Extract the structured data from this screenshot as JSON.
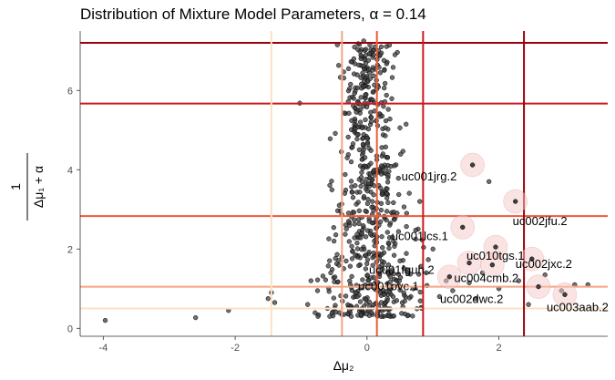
{
  "chart_data": {
    "type": "scatter",
    "title": "Distribution of Mixture Model Parameters, α = 0.14",
    "xlabel": "Δμ₂",
    "ylabel_numerator": "1",
    "ylabel_denominator": "Δμ₁ + α",
    "xlim": [
      -4.35,
      3.65
    ],
    "ylim": [
      -0.2,
      7.5
    ],
    "x_ticks": [
      -4,
      -2,
      0,
      2
    ],
    "y_ticks": [
      0,
      2,
      4,
      6
    ],
    "x_tick_labels": [
      "-4",
      "-2",
      "0",
      "2"
    ],
    "y_tick_labels": [
      "0",
      "2",
      "4",
      "6"
    ],
    "grid": false,
    "point_color": "#404040",
    "vlines": [
      {
        "x": -1.45,
        "color": "#fde0c5"
      },
      {
        "x": -0.38,
        "color": "#f4a582"
      },
      {
        "x": 0.15,
        "color": "#ef5a3c"
      },
      {
        "x": 0.85,
        "color": "#cb181d"
      },
      {
        "x": 2.38,
        "color": "#99000d"
      }
    ],
    "hlines": [
      {
        "y": 0.5,
        "color": "#fde0c5"
      },
      {
        "y": 1.05,
        "color": "#f4a582"
      },
      {
        "y": 2.83,
        "color": "#ef5a3c"
      },
      {
        "y": 5.67,
        "color": "#cb181d"
      },
      {
        "y": 7.2,
        "color": "#99000d"
      }
    ],
    "labeled_points": [
      {
        "label": "uc001jrg.2",
        "x": 1.6,
        "y": 4.12
      },
      {
        "label": "uc002jfu.2",
        "x": 2.25,
        "y": 3.2
      },
      {
        "label": "uc001lcs.1",
        "x": 1.45,
        "y": 2.55
      },
      {
        "label": "uc010tgs.1",
        "x": 1.95,
        "y": 2.05
      },
      {
        "label": "uc002jxc.2",
        "x": 2.5,
        "y": 1.75
      },
      {
        "label": "uc001fguh.2",
        "x": 1.55,
        "y": 1.65
      },
      {
        "label": "uc004cmb.2",
        "x": 1.9,
        "y": 1.6
      },
      {
        "label": "uc001ovc.1",
        "x": 1.25,
        "y": 1.3
      },
      {
        "label": "uc002dwc.2",
        "x": 2.6,
        "y": 1.05
      },
      {
        "label": "uc003aab.2",
        "x": 3.0,
        "y": 0.85
      }
    ],
    "points": [
      {
        "x": -3.97,
        "y": 0.2
      },
      {
        "x": -2.6,
        "y": 0.27
      },
      {
        "x": -2.1,
        "y": 0.45
      },
      {
        "x": -1.5,
        "y": 0.75
      },
      {
        "x": -1.45,
        "y": 0.9
      },
      {
        "x": -1.4,
        "y": 0.65
      },
      {
        "x": -1.02,
        "y": 5.68
      },
      {
        "x": -0.9,
        "y": 0.6
      },
      {
        "x": -0.85,
        "y": 1.2
      },
      {
        "x": -0.75,
        "y": 0.95
      },
      {
        "x": -0.6,
        "y": 0.5
      },
      {
        "x": -0.55,
        "y": 1.4
      },
      {
        "x": -0.5,
        "y": 2.2
      },
      {
        "x": -0.45,
        "y": 7.15
      },
      {
        "x": -0.42,
        "y": 3.1
      },
      {
        "x": -0.38,
        "y": 1.8
      },
      {
        "x": -0.35,
        "y": 0.35
      },
      {
        "x": -0.3,
        "y": 4.3
      },
      {
        "x": -0.28,
        "y": 2.7
      },
      {
        "x": -0.25,
        "y": 1.1
      },
      {
        "x": -0.2,
        "y": 6.8
      },
      {
        "x": -0.18,
        "y": 3.6
      },
      {
        "x": -0.15,
        "y": 0.8
      },
      {
        "x": -0.1,
        "y": 5.2
      },
      {
        "x": -0.08,
        "y": 2.4
      },
      {
        "x": -0.05,
        "y": 7.25
      },
      {
        "x": -0.02,
        "y": 1.5
      },
      {
        "x": 0.0,
        "y": 4.8
      },
      {
        "x": 0.03,
        "y": 0.45
      },
      {
        "x": 0.05,
        "y": 6.3
      },
      {
        "x": 0.08,
        "y": 3.2
      },
      {
        "x": 0.1,
        "y": 1.9
      },
      {
        "x": 0.12,
        "y": 7.1
      },
      {
        "x": 0.15,
        "y": 4.0
      },
      {
        "x": 0.18,
        "y": 2.6
      },
      {
        "x": 0.2,
        "y": 0.9
      },
      {
        "x": 0.25,
        "y": 5.6
      },
      {
        "x": 0.3,
        "y": 3.4
      },
      {
        "x": 0.35,
        "y": 1.3
      },
      {
        "x": 0.4,
        "y": 2.2
      },
      {
        "x": 0.45,
        "y": 0.7
      },
      {
        "x": 0.5,
        "y": 1.7
      },
      {
        "x": 0.6,
        "y": 2.9
      },
      {
        "x": 0.7,
        "y": 1.0
      },
      {
        "x": 0.8,
        "y": 3.2
      },
      {
        "x": 0.9,
        "y": 1.4
      },
      {
        "x": 1.0,
        "y": 2.0
      },
      {
        "x": 1.1,
        "y": 0.8
      },
      {
        "x": 1.2,
        "y": 1.2
      },
      {
        "x": 1.3,
        "y": 0.95
      },
      {
        "x": 1.55,
        "y": 1.15
      },
      {
        "x": 1.65,
        "y": 0.75
      },
      {
        "x": 1.75,
        "y": 1.4
      },
      {
        "x": 1.85,
        "y": 3.7
      },
      {
        "x": 2.0,
        "y": 1.0
      },
      {
        "x": 2.3,
        "y": 1.2
      },
      {
        "x": 2.45,
        "y": 0.6
      },
      {
        "x": 2.7,
        "y": 1.35
      },
      {
        "x": 2.95,
        "y": 0.95
      },
      {
        "x": 3.15,
        "y": 1.1
      },
      {
        "x": 3.35,
        "y": 1.1
      }
    ],
    "dense_cluster": {
      "count": 640,
      "center_x": 0.05,
      "spread_x": 0.38,
      "y_min": 0.3,
      "y_max": 7.2
    }
  }
}
